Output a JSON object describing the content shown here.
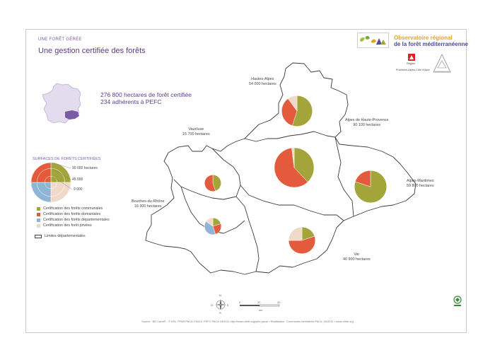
{
  "header": {
    "section": "UNE FORÊT GÉRÉE",
    "title": "Une gestion certifiée des forêts"
  },
  "stats": {
    "line1": "276 800 hectares de forêt certifiée",
    "line2": "234 adhérents à PEFC"
  },
  "logo": {
    "line1": "Observatoire régional",
    "line2": "de la forêt méditerranéenne",
    "region_top": "Région",
    "region_name": "Provence-Alpes-Côte d'Azur"
  },
  "legend": {
    "title": "SURFACES DE FORÊTS CERTIFIÉES",
    "scale": [
      {
        "label": "90 000 hectares",
        "value": 90000
      },
      {
        "label": "45 000",
        "value": 45000
      },
      {
        "label": "9 000",
        "value": 9000
      }
    ],
    "items": [
      {
        "label": "Certification des forêts communales",
        "color": "#a3a53a"
      },
      {
        "label": "Certification des forêts domaniales",
        "color": "#e35a3c"
      },
      {
        "label": "Certification des forêts départementales",
        "color": "#8fb5d6"
      },
      {
        "label": "Certification des forêt privées",
        "color": "#f0d9c9"
      }
    ],
    "boundary_label": "Limites départementales"
  },
  "departments": [
    {
      "name": "Hautes-Alpes",
      "area": "54 000 hectares",
      "shares": [
        0.55,
        0.35,
        0.0,
        0.1
      ]
    },
    {
      "name": "Alpes de Haute-Provence",
      "area": "90 100 hectares",
      "shares": [
        0.38,
        0.6,
        0.0,
        0.02
      ]
    },
    {
      "name": "Alpes-Maritimes",
      "area": "59 800 hectares",
      "shares": [
        0.8,
        0.2,
        0.0,
        0.0
      ]
    },
    {
      "name": "Vaucluse",
      "area": "15 700 hectares",
      "shares": [
        0.45,
        0.55,
        0.0,
        0.0
      ]
    },
    {
      "name": "Bouches-du-Rhône",
      "area": "16 300 hectares",
      "shares": [
        0.2,
        0.25,
        0.4,
        0.15
      ]
    },
    {
      "name": "Var",
      "area": "40 900 hectares",
      "shares": [
        0.2,
        0.55,
        0.0,
        0.25
      ]
    }
  ],
  "compass": {
    "n": "N",
    "e": "E",
    "s": "S",
    "o": "O"
  },
  "scale_bar": {
    "ticks": [
      "0",
      "20",
      "40"
    ],
    "unit": "km"
  },
  "footer": "Source : BD Carto® - © IGN, PFAR PACA n°8410, PEFC PACA 04/2011 http://www.ofme.org/pefc-paca/ • Réalisation : Communes forestières PACA, 04/2011 • www.ofme.org"
}
